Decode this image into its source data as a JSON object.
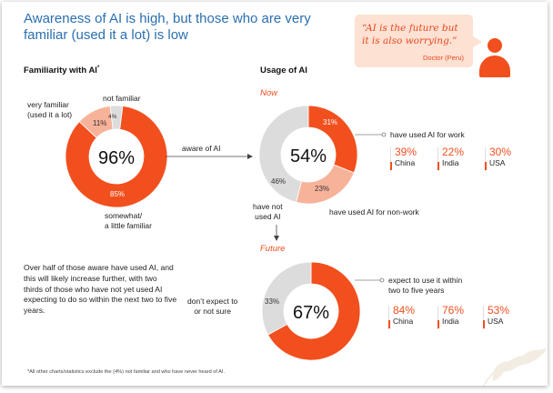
{
  "title": "Awareness of AI is high, but those who are very familiar (used it a lot) is low",
  "quote": {
    "text": "“AI is the future but it is also worrying.”",
    "author": "Doctor (Peru)",
    "icon": "person-icon",
    "bubble_color": "#fde1d3",
    "accent": "#f24f1e"
  },
  "familiarity": {
    "heading": "Familiarity with AI",
    "heading_marker": "*",
    "center": "96%",
    "labels": {
      "very_familiar": "very familiar\n(used it a lot)",
      "not_familiar": "not familiar",
      "somewhat": "somewhat/\na little familiar",
      "aware": "aware of AI"
    },
    "slice_labels": [
      "11%",
      "4%",
      "85%"
    ]
  },
  "usage": {
    "heading": "Usage of AI",
    "now_label": "Now",
    "future_label": "Future",
    "now_center": "54%",
    "now_slice_labels": [
      "31%",
      "23%",
      "46%"
    ],
    "used_work_label": "have used AI for work",
    "used_nonwork_label": "have used AI for non-work",
    "not_used_label": "have not\nused AI",
    "work_stats": [
      {
        "value": "39%",
        "country": "China"
      },
      {
        "value": "22%",
        "country": "India"
      },
      {
        "value": "30%",
        "country": "USA"
      }
    ],
    "future_center": "67%",
    "future_slice_label": "33%",
    "dont_expect_label": "don’t expect to\nor not sure",
    "expect_label": "expect to use it within\ntwo to five years",
    "future_stats": [
      {
        "value": "84%",
        "country": "China"
      },
      {
        "value": "76%",
        "country": "India"
      },
      {
        "value": "53%",
        "country": "USA"
      }
    ]
  },
  "paragraph": "Over half of those aware have used AI, and this will likely increase further, with two thirds of those who have not yet used AI expecting to do so within the next two to five years.",
  "footnote": "*All other charts/statistics exclude the (4%) not familiar and who have never heard of AI.",
  "chart_data": [
    {
      "type": "pie",
      "title": "Familiarity with AI",
      "categories": [
        "somewhat/a little familiar",
        "very familiar (used it a lot)",
        "not familiar"
      ],
      "values": [
        85,
        11,
        4
      ],
      "colors": [
        "#f24f1e",
        "#f7b39a",
        "#dcdcdc"
      ]
    },
    {
      "type": "pie",
      "title": "Usage of AI — Now",
      "categories": [
        "have used AI for work",
        "have used AI for non-work",
        "have not used AI"
      ],
      "values": [
        31,
        23,
        46
      ],
      "colors": [
        "#f24f1e",
        "#f7b39a",
        "#dcdcdc"
      ]
    },
    {
      "type": "pie",
      "title": "Usage of AI — Future",
      "categories": [
        "expect to use it within two to five years",
        "don’t expect to or not sure"
      ],
      "values": [
        67,
        33
      ],
      "colors": [
        "#f24f1e",
        "#dcdcdc"
      ]
    },
    {
      "type": "table",
      "title": "have used AI for work",
      "categories": [
        "China",
        "India",
        "USA"
      ],
      "values": [
        39,
        22,
        30
      ]
    },
    {
      "type": "table",
      "title": "expect to use it within two to five years",
      "categories": [
        "China",
        "India",
        "USA"
      ],
      "values": [
        84,
        76,
        53
      ]
    }
  ]
}
